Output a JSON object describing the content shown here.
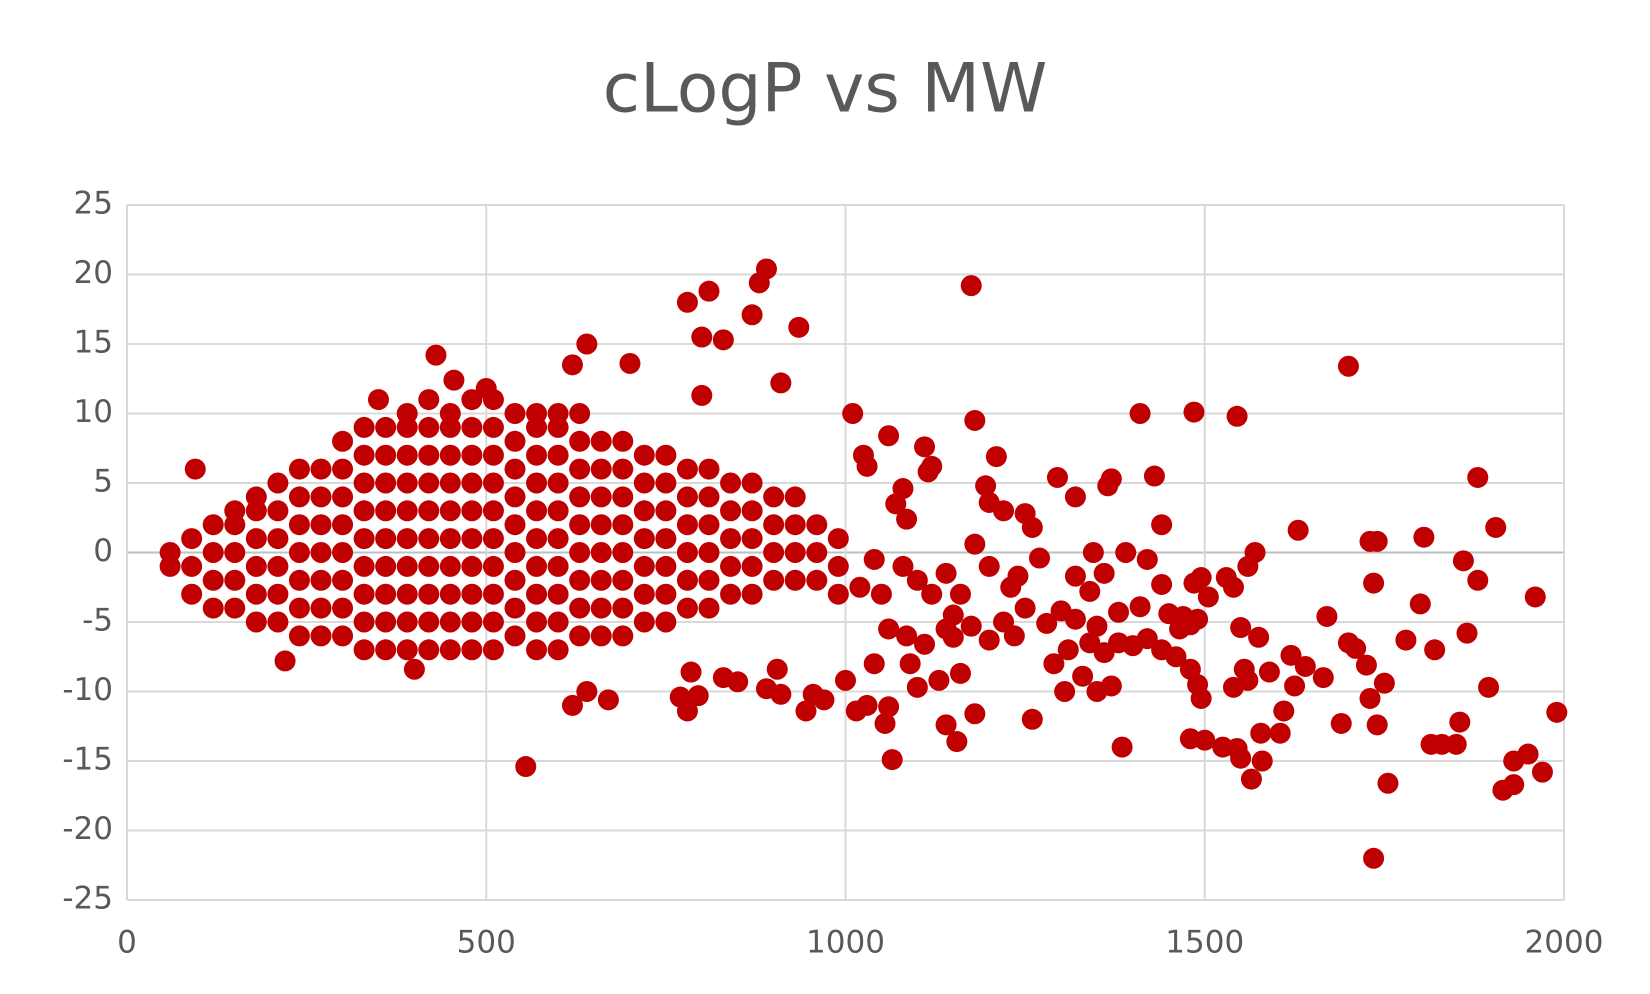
{
  "chart_data": {
    "type": "scatter",
    "title": "cLogP vs MW",
    "color": "#c00000",
    "grid": true,
    "xlim": [
      0,
      2000
    ],
    "xticks": [
      0,
      500,
      1000,
      1500,
      2000
    ],
    "ylim": [
      -25,
      25
    ],
    "yticks": [
      -25,
      -20,
      -15,
      -10,
      -5,
      0,
      5,
      10,
      15,
      20,
      25
    ],
    "x": [
      60,
      60,
      90,
      90,
      90,
      120,
      120,
      120,
      120,
      150,
      150,
      150,
      150,
      150,
      180,
      180,
      180,
      180,
      180,
      180,
      210,
      210,
      210,
      210,
      210,
      210,
      240,
      240,
      240,
      240,
      240,
      240,
      240,
      270,
      270,
      270,
      270,
      270,
      270,
      270,
      300,
      300,
      300,
      300,
      300,
      300,
      300,
      300,
      330,
      330,
      330,
      330,
      330,
      330,
      330,
      330,
      330,
      360,
      360,
      360,
      360,
      360,
      360,
      360,
      360,
      360,
      390,
      390,
      390,
      390,
      390,
      390,
      390,
      390,
      390,
      390,
      420,
      420,
      420,
      420,
      420,
      420,
      420,
      420,
      420,
      420,
      450,
      450,
      450,
      450,
      450,
      450,
      450,
      450,
      450,
      450,
      480,
      480,
      480,
      480,
      480,
      480,
      480,
      480,
      480,
      480,
      510,
      510,
      510,
      510,
      510,
      510,
      510,
      510,
      510,
      510,
      540,
      540,
      540,
      540,
      540,
      540,
      540,
      540,
      540,
      570,
      570,
      570,
      570,
      570,
      570,
      570,
      570,
      570,
      570,
      600,
      600,
      600,
      600,
      600,
      600,
      600,
      600,
      600,
      600,
      630,
      630,
      630,
      630,
      630,
      630,
      630,
      630,
      630,
      660,
      660,
      660,
      660,
      660,
      660,
      660,
      660,
      690,
      690,
      690,
      690,
      690,
      690,
      690,
      690,
      720,
      720,
      720,
      720,
      720,
      720,
      720,
      750,
      750,
      750,
      750,
      750,
      750,
      750,
      780,
      780,
      780,
      780,
      780,
      780,
      810,
      810,
      810,
      810,
      810,
      810,
      840,
      840,
      840,
      840,
      840,
      870,
      870,
      870,
      870,
      870,
      900,
      900,
      900,
      900,
      930,
      930,
      930,
      930,
      960,
      960,
      960,
      990,
      990,
      990,
      95,
      220,
      400,
      430,
      455,
      350,
      555,
      500,
      640,
      620,
      700,
      780,
      810,
      800,
      830,
      870,
      880,
      890,
      935,
      910,
      800,
      620,
      670,
      640,
      770,
      780,
      795,
      785,
      830,
      850,
      890,
      910,
      905,
      945,
      955,
      970,
      1000,
      1015,
      1030,
      1055,
      1060,
      1065,
      1010,
      1060,
      1030,
      1025,
      1110,
      1115,
      1120,
      1080,
      1070,
      1085,
      1180,
      1175,
      1210,
      1195,
      1200,
      1220,
      1250,
      1260,
      1295,
      1320,
      1370,
      1365,
      1410,
      1430,
      1440,
      1485,
      1545,
      1700,
      1630,
      1805,
      1880,
      1905,
      1730,
      1740,
      1570,
      1560,
      1530,
      1540,
      1485,
      1495,
      1505,
      1440,
      1420,
      1390,
      1345,
      1320,
      1340,
      1360,
      1270,
      1240,
      1450,
      1470,
      1480,
      1490,
      1465,
      1410,
      1380,
      1350,
      1300,
      1320,
      1280,
      1340,
      1360,
      1400,
      1420,
      1440,
      1460,
      1480,
      1490,
      1495,
      1380,
      1290,
      1310,
      1330,
      1305,
      1350,
      1370,
      1385,
      1480,
      1500,
      1525,
      1545,
      1550,
      1540,
      1555,
      1560,
      1565,
      1580,
      1578,
      1590,
      1605,
      1610,
      1620,
      1625,
      1640,
      1550,
      1575,
      1670,
      1665,
      1690,
      1700,
      1710,
      1725,
      1730,
      1740,
      1750,
      1755,
      1735,
      1735,
      1780,
      1800,
      1815,
      1830,
      1820,
      1850,
      1855,
      1860,
      1865,
      1880,
      1895,
      1915,
      1930,
      1930,
      1950,
      1960,
      1970,
      1990,
      1235,
      1220,
      1180,
      1140,
      1155,
      1160,
      1130,
      1100,
      1110,
      1150,
      1175,
      1200,
      1260,
      1150,
      1120,
      1100,
      1080,
      1040,
      1050,
      1020,
      1060,
      1085,
      1140,
      1040,
      1090,
      1200,
      1180,
      1230,
      1250,
      1140,
      1160
    ],
    "values": [
      -1,
      0,
      -3,
      -1,
      1,
      -4,
      -2,
      0,
      2,
      -4,
      -2,
      0,
      2,
      3,
      -5,
      -3,
      -1,
      1,
      3,
      4,
      -5,
      -3,
      -1,
      1,
      3,
      5,
      -6,
      -4,
      -2,
      0,
      2,
      4,
      6,
      -6,
      -4,
      -2,
      0,
      2,
      4,
      6,
      -6,
      -4,
      -2,
      0,
      2,
      4,
      6,
      8,
      -7,
      -5,
      -3,
      -1,
      1,
      3,
      5,
      7,
      9,
      -7,
      -5,
      -3,
      -1,
      1,
      3,
      5,
      7,
      9,
      -7,
      -5,
      -3,
      -1,
      1,
      3,
      5,
      7,
      9,
      10,
      -7,
      -5,
      -3,
      -1,
      1,
      3,
      5,
      7,
      9,
      11,
      -7,
      -5,
      -3,
      -1,
      1,
      3,
      5,
      7,
      9,
      10,
      -7,
      -5,
      -3,
      -1,
      1,
      3,
      5,
      7,
      9,
      11,
      -7,
      -5,
      -3,
      -1,
      1,
      3,
      5,
      7,
      9,
      11,
      -6,
      -4,
      -2,
      0,
      2,
      4,
      6,
      8,
      10,
      -7,
      -5,
      -3,
      -1,
      1,
      3,
      5,
      7,
      9,
      10,
      -7,
      -5,
      -3,
      -1,
      1,
      3,
      5,
      7,
      9,
      10,
      -6,
      -4,
      -2,
      0,
      2,
      4,
      6,
      8,
      10,
      -6,
      -4,
      -2,
      0,
      2,
      4,
      6,
      8,
      -6,
      -4,
      -2,
      0,
      2,
      4,
      6,
      8,
      -5,
      -3,
      -1,
      1,
      3,
      5,
      7,
      -5,
      -3,
      -1,
      1,
      3,
      5,
      7,
      -4,
      -2,
      0,
      2,
      4,
      6,
      -4,
      -2,
      0,
      2,
      4,
      6,
      -3,
      -1,
      1,
      3,
      5,
      -3,
      -1,
      1,
      3,
      5,
      -2,
      0,
      2,
      4,
      -2,
      0,
      2,
      4,
      -2,
      0,
      2,
      -3,
      -1,
      1,
      6,
      -7.8,
      -8.4,
      14.2,
      12.4,
      11,
      -15.4,
      11.8,
      15,
      13.5,
      13.6,
      18,
      18.8,
      15.5,
      15.3,
      17.1,
      19.4,
      20.4,
      16.2,
      12.2,
      11.3,
      -11,
      -10.6,
      -10,
      -10.4,
      -11.4,
      -10.3,
      -8.6,
      -9,
      -9.3,
      -9.8,
      -10.2,
      -8.4,
      -11.4,
      -10.2,
      -10.6,
      -9.2,
      -11.4,
      -11,
      -12.3,
      -11.1,
      -14.9,
      10,
      8.4,
      6.2,
      7,
      7.6,
      5.8,
      6.2,
      4.6,
      3.5,
      2.4,
      9.5,
      19.2,
      6.9,
      4.8,
      3.6,
      3,
      2.8,
      1.8,
      5.4,
      4,
      5.3,
      4.8,
      10,
      5.5,
      2,
      10.1,
      9.8,
      13.4,
      1.6,
      1.1,
      5.4,
      1.8,
      0.8,
      0.8,
      0,
      -1,
      -1.8,
      -2.5,
      -2.2,
      -1.8,
      -3.2,
      -2.3,
      -0.5,
      0,
      0,
      -1.7,
      -2.8,
      -1.5,
      -0.4,
      -1.7,
      -4.4,
      -4.6,
      -5.2,
      -4.8,
      -5.5,
      -3.9,
      -4.3,
      -5.3,
      -4.2,
      -4.8,
      -5.1,
      -6.5,
      -7.2,
      -6.7,
      -6.2,
      -7,
      -7.5,
      -8.4,
      -9.5,
      -10.5,
      -6.5,
      -8,
      -7,
      -8.9,
      -10,
      -10,
      -9.6,
      -14,
      -13.4,
      -13.5,
      -14,
      -14.1,
      -14.8,
      -9.7,
      -8.4,
      -9.2,
      -16.3,
      -15,
      -13,
      -8.6,
      -13,
      -11.4,
      -7.4,
      -9.6,
      -8.2,
      -5.4,
      -6.1,
      -4.6,
      -9,
      -12.3,
      -6.5,
      -6.9,
      -8.1,
      -10.5,
      -12.4,
      -9.4,
      -16.6,
      -2.2,
      -22,
      -6.3,
      -3.7,
      -13.8,
      -13.8,
      -7,
      -13.8,
      -12.2,
      -0.6,
      -5.8,
      -2,
      -9.7,
      -17.1,
      -16.7,
      -15,
      -14.5,
      -3.2,
      -15.8,
      -11.5,
      -6,
      -5,
      -11.6,
      -12.4,
      -13.6,
      -8.7,
      -9.2,
      -9.7,
      -6.6,
      -6.1,
      -5.3,
      -6.3,
      -12,
      -4.5,
      -3,
      -2,
      -1,
      -0.5,
      -3,
      -2.5,
      -5.5,
      -6,
      -5.5,
      -8,
      -8,
      -1,
      0.6,
      -2.5,
      -4,
      -1.5,
      -3
    ]
  }
}
